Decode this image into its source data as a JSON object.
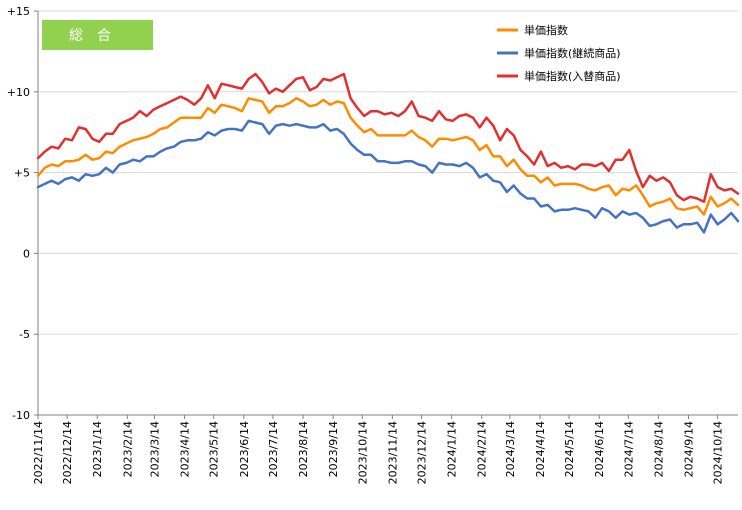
{
  "badge": {
    "label": "総合",
    "color": "#92d050"
  },
  "chart_data": {
    "type": "line",
    "title": "総合",
    "ylim": [
      -10,
      15
    ],
    "yticks": [
      -10,
      -5,
      0,
      5,
      10,
      15
    ],
    "ytick_labels": [
      "-10",
      "-5",
      "0",
      "+5",
      "+10",
      "+15"
    ],
    "x_dates": [
      "2022/11/14",
      "2022/11/21",
      "2022/11/28",
      "2022/12/5",
      "2022/12/12",
      "2022/12/19",
      "2022/12/26",
      "2023/1/2",
      "2023/1/9",
      "2023/1/16",
      "2023/1/23",
      "2023/1/30",
      "2023/2/6",
      "2023/2/13",
      "2023/2/20",
      "2023/2/27",
      "2023/3/6",
      "2023/3/13",
      "2023/3/20",
      "2023/3/27",
      "2023/4/3",
      "2023/4/10",
      "2023/4/17",
      "2023/4/24",
      "2023/5/1",
      "2023/5/8",
      "2023/5/15",
      "2023/5/22",
      "2023/5/29",
      "2023/6/5",
      "2023/6/12",
      "2023/6/19",
      "2023/6/26",
      "2023/7/3",
      "2023/7/10",
      "2023/7/17",
      "2023/7/24",
      "2023/7/31",
      "2023/8/7",
      "2023/8/14",
      "2023/8/21",
      "2023/8/28",
      "2023/9/4",
      "2023/9/11",
      "2023/9/18",
      "2023/9/25",
      "2023/10/2",
      "2023/10/9",
      "2023/10/16",
      "2023/10/23",
      "2023/10/30",
      "2023/11/6",
      "2023/11/13",
      "2023/11/20",
      "2023/11/27",
      "2023/12/4",
      "2023/12/11",
      "2023/12/18",
      "2023/12/25",
      "2024/1/1",
      "2024/1/8",
      "2024/1/15",
      "2024/1/22",
      "2024/1/29",
      "2024/2/5",
      "2024/2/12",
      "2024/2/19",
      "2024/2/26",
      "2024/3/4",
      "2024/3/11",
      "2024/3/18",
      "2024/3/25",
      "2024/4/1",
      "2024/4/8",
      "2024/4/15",
      "2024/4/22",
      "2024/4/29",
      "2024/5/6",
      "2024/5/13",
      "2024/5/20",
      "2024/5/27",
      "2024/6/3",
      "2024/6/10",
      "2024/6/17",
      "2024/6/24",
      "2024/7/1",
      "2024/7/8",
      "2024/7/15",
      "2024/7/22",
      "2024/7/29",
      "2024/8/5",
      "2024/8/12",
      "2024/8/19",
      "2024/8/26",
      "2024/9/2",
      "2024/9/9",
      "2024/9/16",
      "2024/9/23",
      "2024/9/30",
      "2024/10/7",
      "2024/10/14",
      "2024/10/21",
      "2024/10/28",
      "2024/11/4"
    ],
    "xtick_labels": [
      "2022/11/14",
      "2022/12/14",
      "2023/1/14",
      "2023/2/14",
      "2023/3/14",
      "2023/4/14",
      "2023/5/14",
      "2023/6/14",
      "2023/7/14",
      "2023/8/14",
      "2023/9/14",
      "2023/10/14",
      "2023/11/14",
      "2023/12/14",
      "2024/1/14",
      "2024/2/14",
      "2024/3/14",
      "2024/4/14",
      "2024/5/14",
      "2024/6/14",
      "2024/7/14",
      "2024/8/14",
      "2024/9/14",
      "2024/10/14"
    ],
    "series": [
      {
        "name": "単価指数",
        "color": "#ff8c00",
        "values": [
          4.8,
          5.3,
          5.5,
          5.4,
          5.7,
          5.7,
          5.8,
          6.1,
          5.8,
          5.9,
          6.3,
          6.2,
          6.6,
          6.8,
          7.0,
          7.1,
          7.2,
          7.4,
          7.7,
          7.8,
          8.1,
          8.4,
          8.4,
          8.4,
          8.4,
          9.0,
          8.7,
          9.2,
          9.1,
          9.0,
          8.8,
          9.6,
          9.5,
          9.4,
          8.7,
          9.1,
          9.1,
          9.3,
          9.6,
          9.4,
          9.1,
          9.2,
          9.5,
          9.2,
          9.4,
          9.3,
          8.4,
          7.9,
          7.5,
          7.7,
          7.3,
          7.3,
          7.3,
          7.3,
          7.3,
          7.6,
          7.2,
          7.0,
          6.6,
          7.1,
          7.1,
          7.0,
          7.1,
          7.2,
          7.0,
          6.4,
          6.7,
          6.0,
          6.0,
          5.4,
          5.8,
          5.2,
          4.8,
          4.8,
          4.4,
          4.7,
          4.2,
          4.3,
          4.3,
          4.3,
          4.2,
          4.0,
          3.9,
          4.1,
          4.2,
          3.6,
          4.0,
          3.9,
          4.2,
          3.6,
          2.9,
          3.1,
          3.2,
          3.4,
          2.8,
          2.7,
          2.8,
          2.9,
          2.4,
          3.5,
          2.9,
          3.1,
          3.4,
          3.0
        ]
      },
      {
        "name": "単価指数(継続商品)",
        "color": "#4472c4",
        "values": [
          4.1,
          4.3,
          4.5,
          4.3,
          4.6,
          4.7,
          4.5,
          4.9,
          4.8,
          4.9,
          5.3,
          5.0,
          5.5,
          5.6,
          5.8,
          5.7,
          6.0,
          6.0,
          6.3,
          6.5,
          6.6,
          6.9,
          7.0,
          7.0,
          7.1,
          7.5,
          7.3,
          7.6,
          7.7,
          7.7,
          7.6,
          8.2,
          8.1,
          8.0,
          7.4,
          7.9,
          8.0,
          7.9,
          8.0,
          7.9,
          7.8,
          7.8,
          8.0,
          7.6,
          7.7,
          7.4,
          6.8,
          6.4,
          6.1,
          6.1,
          5.7,
          5.7,
          5.6,
          5.6,
          5.7,
          5.7,
          5.5,
          5.4,
          5.0,
          5.6,
          5.5,
          5.5,
          5.4,
          5.6,
          5.3,
          4.7,
          4.9,
          4.5,
          4.4,
          3.8,
          4.2,
          3.7,
          3.4,
          3.4,
          2.9,
          3.0,
          2.6,
          2.7,
          2.7,
          2.8,
          2.7,
          2.6,
          2.2,
          2.8,
          2.6,
          2.2,
          2.6,
          2.4,
          2.5,
          2.2,
          1.7,
          1.8,
          2.0,
          2.1,
          1.6,
          1.8,
          1.8,
          1.9,
          1.3,
          2.4,
          1.8,
          2.1,
          2.5,
          2.0
        ]
      },
      {
        "name": "単価指数(入替商品)",
        "color": "#e03030",
        "values": [
          5.9,
          6.3,
          6.6,
          6.5,
          7.1,
          7.0,
          7.8,
          7.7,
          7.1,
          6.9,
          7.4,
          7.4,
          8.0,
          8.2,
          8.4,
          8.8,
          8.5,
          8.9,
          9.1,
          9.3,
          9.5,
          9.7,
          9.5,
          9.2,
          9.6,
          10.4,
          9.6,
          10.5,
          10.4,
          10.3,
          10.2,
          10.8,
          11.1,
          10.6,
          9.9,
          10.2,
          10.0,
          10.4,
          10.8,
          10.9,
          10.1,
          10.3,
          10.8,
          10.7,
          10.9,
          11.1,
          9.6,
          9.0,
          8.5,
          8.8,
          8.8,
          8.6,
          8.7,
          8.5,
          8.8,
          9.4,
          8.5,
          8.4,
          8.2,
          8.8,
          8.3,
          8.2,
          8.5,
          8.6,
          8.4,
          7.8,
          8.4,
          7.9,
          7.0,
          7.7,
          7.3,
          6.4,
          6.0,
          5.5,
          6.3,
          5.4,
          5.6,
          5.3,
          5.4,
          5.2,
          5.5,
          5.5,
          5.4,
          5.6,
          5.1,
          5.8,
          5.8,
          6.4,
          5.1,
          4.1,
          4.8,
          4.5,
          4.7,
          4.4,
          3.6,
          3.3,
          3.5,
          3.4,
          3.2,
          4.9,
          4.1,
          3.9,
          4.0,
          3.7
        ]
      }
    ],
    "grid": true,
    "legend_position": "top-right"
  }
}
